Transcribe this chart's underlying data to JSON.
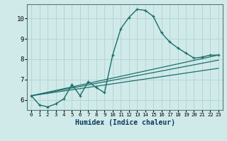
{
  "xlabel": "Humidex (Indice chaleur)",
  "background_color": "#d0eaea",
  "grid_color": "#b8d4d4",
  "line_color": "#1a6e6a",
  "xlim": [
    -0.5,
    23.5
  ],
  "ylim": [
    5.5,
    10.7
  ],
  "yticks": [
    6,
    7,
    8,
    9,
    10
  ],
  "xticks": [
    0,
    1,
    2,
    3,
    4,
    5,
    6,
    7,
    8,
    9,
    10,
    11,
    12,
    13,
    14,
    15,
    16,
    17,
    18,
    19,
    20,
    21,
    22,
    23
  ],
  "main_x": [
    0,
    1,
    2,
    3,
    4,
    5,
    6,
    7,
    8,
    9,
    10,
    11,
    12,
    13,
    14,
    15,
    16,
    17,
    18,
    19,
    20,
    21,
    22,
    23
  ],
  "main_y": [
    6.2,
    5.75,
    5.65,
    5.8,
    6.05,
    6.75,
    6.2,
    6.9,
    6.6,
    6.35,
    8.2,
    9.5,
    10.05,
    10.45,
    10.4,
    10.1,
    9.3,
    8.85,
    8.55,
    8.3,
    8.05,
    8.1,
    8.2,
    8.2
  ],
  "ref_lines": [
    {
      "x0": 0,
      "y0": 6.2,
      "x1": 23,
      "y1": 8.2
    },
    {
      "x0": 0,
      "y0": 6.2,
      "x1": 23,
      "y1": 7.95
    },
    {
      "x0": 0,
      "y0": 6.2,
      "x1": 23,
      "y1": 7.55
    }
  ]
}
